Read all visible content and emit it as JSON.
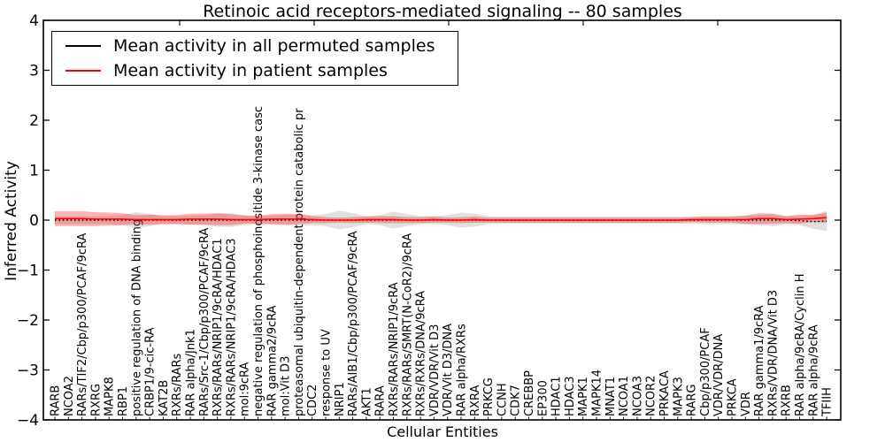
{
  "figure": {
    "background": "#ffffff"
  },
  "chart_data": {
    "type": "line",
    "title": "Retinoic acid receptors-mediated signaling -- 80 samples",
    "xlabel": "Cellular Entities",
    "ylabel": "Inferred Activity",
    "ylim": [
      -4,
      4
    ],
    "yticks": [
      4,
      3,
      2,
      1,
      0,
      -1,
      -2,
      -3,
      -4
    ],
    "grid": false,
    "legend_position": "upper left",
    "colors": {
      "permuted_line": "#000000",
      "patient_line": "#ff0000",
      "permuted_band": "#909090",
      "patient_band": "#ff0000",
      "axes": "#000000"
    },
    "categories": [
      "RARB",
      "NCOA2",
      "RARs/TIF2/Cbp/p300/PCAF/9cRA",
      "RXRG",
      "MAPK8",
      "RBP1",
      "positive regulation of DNA binding",
      "CRBP1/9-cic-RA",
      "KAT2B",
      "RXRs/RARs",
      "RAR alpha/Jnk1",
      "RARs/Src-1/Cbp/p300/PCAF/9cRA",
      "RXRs/RARs/NRIP1/9cRA/HDAC1",
      "RXRs/RARs/NRIP1/9cRA/HDAC3",
      "mol:9cRA",
      "negative regulation of phosphoinositide 3-kinase casc",
      "RAR gamma2/9cRA",
      "mol:Vit D3",
      "proteasomal ubiquitin-dependent protein catabolic pr",
      "CDC2",
      "response to UV",
      "NRIP1",
      "RARs/AIB1/Cbp/p300/PCAF/9cRA",
      "AKT1",
      "RARA",
      "RXRs/RARs/NRIP1/9cRA",
      "RXRs/RARs/SMRT(N-CoR2)/9cRA",
      "RXRs/RXRs/DNA/9cRA",
      "VDR/VDR/Vit D3",
      "VDR/Vit D3/DNA",
      "RAR alpha/RXRs",
      "RXRA",
      "PRKCG",
      "CCNH",
      "CDK7",
      "CREBBP",
      "EP300",
      "HDAC1",
      "HDAC3",
      "MAPK1",
      "MAPK14",
      "MNAT1",
      "NCOA1",
      "NCOA3",
      "NCOR2",
      "PRKACA",
      "MAPK3",
      "RARG",
      "Cbp/p300/PCAF",
      "VDR/VDR/DNA",
      "PRKCA",
      "VDR",
      "RAR gamma1/9cRA",
      "RXRs/VDR/DNA/Vit D3",
      "RXRB",
      "RAR alpha/9cRA/Cyclin H",
      "RAR alpha/9cRA",
      "TFIIH"
    ],
    "series": [
      {
        "name": "Mean activity in all permuted samples",
        "color": "#000000",
        "values": [
          0,
          0,
          0,
          0,
          0,
          0,
          0,
          0,
          0,
          0,
          0,
          0,
          0,
          0,
          0,
          0,
          0,
          0,
          0,
          0,
          0,
          0,
          0,
          0,
          0,
          0,
          0,
          0,
          0,
          0,
          0,
          0,
          0,
          0,
          0,
          0,
          0,
          0,
          0,
          0,
          0,
          0,
          0,
          0,
          0,
          0,
          0,
          0,
          0,
          0,
          0,
          0,
          0,
          0,
          0,
          -0.01,
          -0.03,
          -0.02
        ],
        "band_halfwidth": [
          0.08,
          0.08,
          0.08,
          0.08,
          0.08,
          0.1,
          0.16,
          0.12,
          0.08,
          0.08,
          0.09,
          0.1,
          0.13,
          0.14,
          0.1,
          0.08,
          0.09,
          0.1,
          0.12,
          0.1,
          0.12,
          0.19,
          0.14,
          0.08,
          0.1,
          0.17,
          0.12,
          0.08,
          0.08,
          0.1,
          0.15,
          0.13,
          0.08,
          0.07,
          0.07,
          0.07,
          0.07,
          0.07,
          0.07,
          0.07,
          0.07,
          0.07,
          0.07,
          0.07,
          0.07,
          0.07,
          0.07,
          0.07,
          0.08,
          0.08,
          0.08,
          0.09,
          0.1,
          0.12,
          0.08,
          0.09,
          0.14,
          0.2
        ]
      },
      {
        "name": "Mean activity in patient samples",
        "color": "#ff0000",
        "values": [
          0.03,
          0.03,
          0.03,
          0.02,
          0.02,
          0.02,
          0.01,
          0.01,
          0.01,
          0.01,
          0.02,
          0.02,
          0.02,
          0.01,
          0.01,
          0.01,
          0.02,
          0.02,
          0.02,
          0.01,
          0,
          0,
          0,
          0.01,
          0.01,
          0.01,
          0,
          0,
          0.01,
          0,
          0,
          0.01,
          0,
          0,
          0,
          0,
          0,
          0,
          0,
          0,
          0,
          0,
          0,
          0,
          0,
          0,
          0,
          0.01,
          0.01,
          0.01,
          0.01,
          0.01,
          0.03,
          0.03,
          0.01,
          0.02,
          0.03,
          0.05
        ],
        "band_halfwidth": [
          0.15,
          0.15,
          0.15,
          0.14,
          0.13,
          0.12,
          0.09,
          0.1,
          0.09,
          0.09,
          0.11,
          0.11,
          0.12,
          0.11,
          0.08,
          0.08,
          0.1,
          0.11,
          0.1,
          0.07,
          0.06,
          0.05,
          0.06,
          0.06,
          0.07,
          0.07,
          0.06,
          0.06,
          0.06,
          0.05,
          0.06,
          0.06,
          0.05,
          0.05,
          0.05,
          0.05,
          0.05,
          0.05,
          0.05,
          0.05,
          0.05,
          0.05,
          0.05,
          0.05,
          0.05,
          0.05,
          0.05,
          0.05,
          0.06,
          0.06,
          0.06,
          0.08,
          0.11,
          0.1,
          0.07,
          0.09,
          0.07,
          0.1
        ]
      }
    ]
  },
  "legend": {
    "entries": [
      {
        "label": "Mean activity in all permuted samples",
        "color": "#000000"
      },
      {
        "label": "Mean activity in patient samples",
        "color": "#ff0000"
      }
    ]
  }
}
